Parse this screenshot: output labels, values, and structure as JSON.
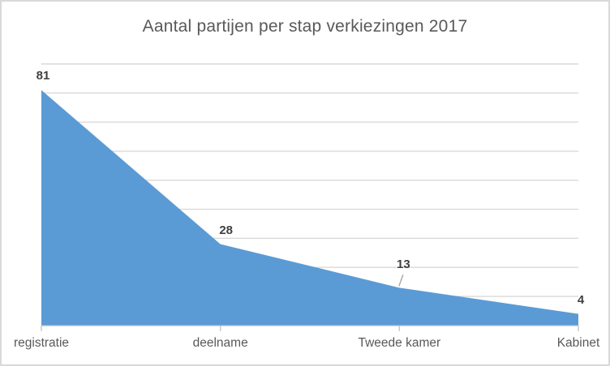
{
  "chart_data": {
    "type": "area",
    "title": "Aantal partijen per stap verkiezingen 2017",
    "categories": [
      "registratie",
      "deelname",
      "Tweede kamer",
      "Kabinet"
    ],
    "values": [
      81,
      28,
      13,
      4
    ],
    "xlabel": "",
    "ylabel": "",
    "ylim": [
      0,
      90
    ],
    "gridline_step": 10,
    "grid": "horizontal",
    "legend": "none",
    "data_labels_shown": true,
    "colors": {
      "area": "#5b9bd5",
      "gridline": "#d9d9d9",
      "axis_line": "#d9d9d9",
      "tick": "#c8c8c8",
      "leader_line": "#a6a6a6",
      "title_text": "#595959",
      "data_label_text": "#404040",
      "category_text": "#595959",
      "frame_border": "#d9d9d9",
      "background": "#ffffff"
    }
  }
}
